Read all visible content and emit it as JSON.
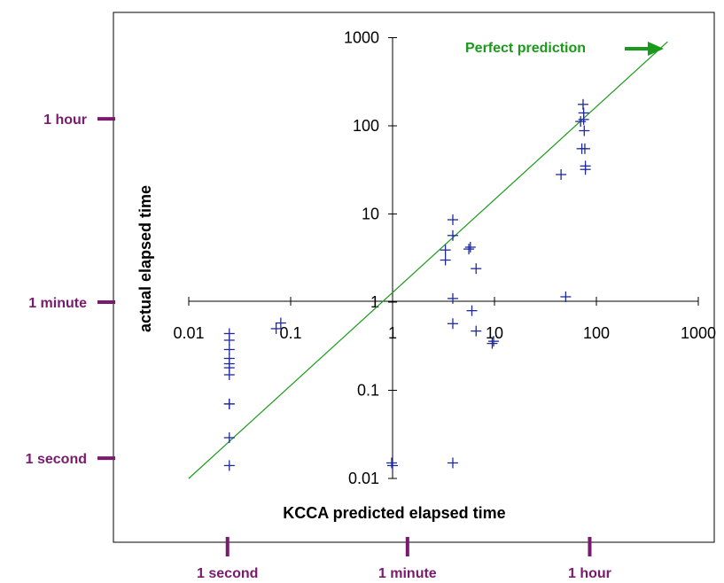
{
  "chart_data": {
    "type": "scatter",
    "title": "",
    "xlabel": "KCCA predicted elapsed time",
    "ylabel": "actual elapsed time",
    "xscale": "log",
    "yscale": "log",
    "xlim": [
      0.01,
      1000
    ],
    "ylim": [
      0.01,
      1000
    ],
    "x_ticks": [
      0.01,
      0.1,
      1,
      10,
      100,
      1000
    ],
    "x_tick_labels": [
      "0.01",
      "0.1",
      "1",
      "10",
      "100",
      "1000"
    ],
    "y_ticks": [
      0.01,
      0.1,
      1,
      10,
      100,
      1000
    ],
    "y_tick_labels": [
      "0.01",
      "0.1",
      "1",
      "10",
      "100",
      "1000"
    ],
    "grid": false,
    "legend": "none",
    "series": [
      {
        "marker": "plus",
        "color": "#1f2a9a",
        "points": [
          [
            0.025,
            0.44
          ],
          [
            0.025,
            0.37
          ],
          [
            0.025,
            0.29
          ],
          [
            0.025,
            0.23
          ],
          [
            0.025,
            0.2
          ],
          [
            0.025,
            0.18
          ],
          [
            0.025,
            0.15
          ],
          [
            0.025,
            0.07
          ],
          [
            0.025,
            0.07
          ],
          [
            0.025,
            0.029
          ],
          [
            0.025,
            0.014
          ],
          [
            0.072,
            0.5
          ],
          [
            0.08,
            0.58
          ],
          [
            0.98,
            0.015
          ],
          [
            1.0,
            0.014
          ],
          [
            3.3,
            3.9
          ],
          [
            3.3,
            3.0
          ],
          [
            3.9,
            8.6
          ],
          [
            3.9,
            5.7
          ],
          [
            3.9,
            1.1
          ],
          [
            3.9,
            0.57
          ],
          [
            3.9,
            0.015
          ],
          [
            5.6,
            4.0
          ],
          [
            5.8,
            4.2
          ],
          [
            6.0,
            0.8
          ],
          [
            6.6,
            2.4
          ],
          [
            6.6,
            0.47
          ],
          [
            9.5,
            0.34
          ],
          [
            9.8,
            0.36
          ],
          [
            45,
            28
          ],
          [
            50,
            1.15
          ],
          [
            70,
            112
          ],
          [
            72,
            55
          ],
          [
            74,
            175
          ],
          [
            75,
            140
          ],
          [
            75,
            118
          ],
          [
            76,
            88
          ],
          [
            77,
            55
          ],
          [
            78,
            35
          ],
          [
            78,
            32
          ]
        ]
      }
    ],
    "reference_line": {
      "label": "Perfect prediction",
      "color": "#1a9a1a",
      "from": [
        0.01,
        0.01
      ],
      "to": [
        500,
        900
      ]
    },
    "x_reference_ticks": [
      {
        "label": "1 second",
        "value": 0.024
      },
      {
        "label": "1 minute",
        "value": 1.4
      },
      {
        "label": "1 hour",
        "value": 86
      }
    ],
    "y_reference_ticks": [
      {
        "label": "1 hour",
        "value": 120
      },
      {
        "label": "1 minute",
        "value": 1.0
      },
      {
        "label": "1 second",
        "value": 0.017
      }
    ],
    "reference_color": "#7a1a6e",
    "marker_color": "#1f2a9a",
    "annotation": {
      "text": "Perfect prediction",
      "color": "#1a9a1a",
      "arrow": "right"
    }
  }
}
